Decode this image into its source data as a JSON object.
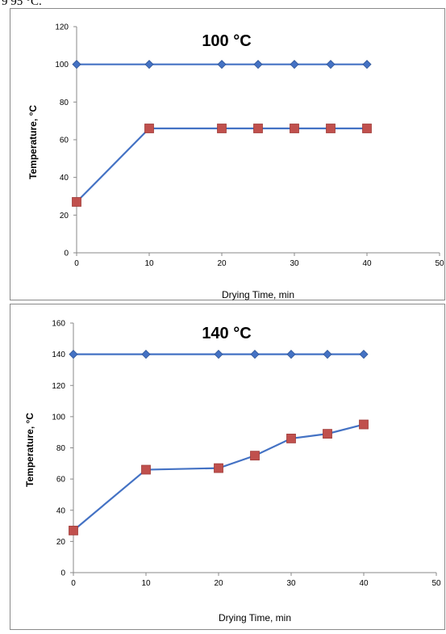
{
  "page": {
    "top_fragment": "9 95 °C."
  },
  "chart_data": [
    {
      "type": "line",
      "title": "100 °C",
      "xlabel": "Drying Time, min",
      "ylabel": "Temperature, °C",
      "xlim": [
        0,
        50
      ],
      "ylim": [
        0,
        120
      ],
      "x_ticks": [
        "0",
        "10",
        "20",
        "30",
        "40",
        "50"
      ],
      "y_ticks": [
        "0",
        "20",
        "40",
        "60",
        "80",
        "100",
        "120"
      ],
      "grid": false,
      "legend": "none",
      "series": [
        {
          "marker": "diamond",
          "color": "#4472C4",
          "points": [
            [
              0,
              100
            ],
            [
              10,
              100
            ],
            [
              20,
              100
            ],
            [
              25,
              100
            ],
            [
              30,
              100
            ],
            [
              35,
              100
            ],
            [
              40,
              100
            ]
          ]
        },
        {
          "marker": "square",
          "color": "#C0504D",
          "line_color": "#4472C4",
          "points": [
            [
              0,
              27
            ],
            [
              10,
              66
            ],
            [
              20,
              66
            ],
            [
              25,
              66
            ],
            [
              30,
              66
            ],
            [
              35,
              66
            ],
            [
              40,
              66
            ]
          ]
        }
      ]
    },
    {
      "type": "line",
      "title": "140 °C",
      "xlabel": "Drying Time, min",
      "ylabel": "Temperature, °C",
      "xlim": [
        0,
        50
      ],
      "ylim": [
        0,
        160
      ],
      "x_ticks": [
        "0",
        "10",
        "20",
        "30",
        "40",
        "50"
      ],
      "y_ticks": [
        "0",
        "20",
        "40",
        "60",
        "80",
        "100",
        "120",
        "140",
        "160"
      ],
      "grid": false,
      "legend": "none",
      "series": [
        {
          "marker": "diamond",
          "color": "#4472C4",
          "points": [
            [
              0,
              140
            ],
            [
              10,
              140
            ],
            [
              20,
              140
            ],
            [
              25,
              140
            ],
            [
              30,
              140
            ],
            [
              35,
              140
            ],
            [
              40,
              140
            ]
          ]
        },
        {
          "marker": "square",
          "color": "#C0504D",
          "line_color": "#4472C4",
          "points": [
            [
              0,
              27
            ],
            [
              10,
              66
            ],
            [
              20,
              67
            ],
            [
              25,
              75
            ],
            [
              30,
              86
            ],
            [
              35,
              89
            ],
            [
              40,
              95
            ]
          ]
        }
      ]
    }
  ]
}
